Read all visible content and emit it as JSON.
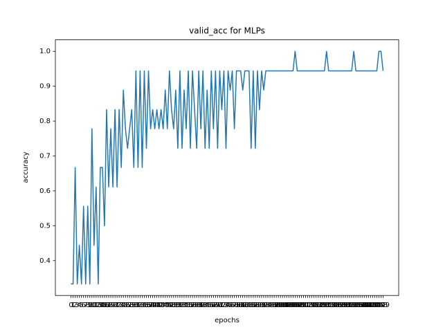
{
  "chart_data": {
    "type": "line",
    "title": "valid_acc for MLPs",
    "x_label": "epochs",
    "y_label": "accuracy",
    "categories": [
      "0",
      "1",
      "2",
      "3",
      "4",
      "5",
      "6",
      "7",
      "8",
      "9",
      "10",
      "11",
      "12",
      "13",
      "14",
      "15",
      "16",
      "17",
      "18",
      "19",
      "20",
      "21",
      "22",
      "23",
      "24",
      "25",
      "26",
      "27",
      "28",
      "29",
      "30",
      "31",
      "32",
      "33",
      "34",
      "35",
      "36",
      "37",
      "38",
      "39",
      "40",
      "41",
      "42",
      "43",
      "44",
      "45",
      "46",
      "47",
      "48",
      "49",
      "50",
      "51",
      "52",
      "53",
      "54",
      "55",
      "56",
      "57",
      "58",
      "59",
      "60",
      "61",
      "62",
      "63",
      "64",
      "65",
      "66",
      "67",
      "68",
      "69",
      "70",
      "71",
      "72",
      "73",
      "74",
      "75",
      "76",
      "77",
      "78",
      "79",
      "80",
      "81",
      "82",
      "83",
      "84",
      "85",
      "86",
      "87",
      "88",
      "89",
      "90",
      "91",
      "92",
      "93",
      "94",
      "95",
      "96",
      "97",
      "98",
      "99",
      "100",
      "101",
      "102",
      "103",
      "104",
      "105",
      "106",
      "107",
      "108",
      "109",
      "110",
      "111",
      "112",
      "113",
      "114",
      "115",
      "116",
      "117",
      "118",
      "119",
      "120",
      "121",
      "122",
      "123",
      "124",
      "125",
      "126",
      "127",
      "128",
      "129",
      "130",
      "131",
      "132",
      "133",
      "134",
      "135",
      "136",
      "137",
      "138",
      "139",
      "140",
      "141",
      "142",
      "143",
      "144",
      "145",
      "146",
      "147",
      "148",
      "149"
    ],
    "series": [
      {
        "name": "valid_acc",
        "color": "#1f77b4",
        "values": [
          0.333,
          0.333,
          0.667,
          0.333,
          0.444,
          0.333,
          0.556,
          0.333,
          0.556,
          0.333,
          0.778,
          0.444,
          0.611,
          0.333,
          0.667,
          0.667,
          0.5,
          0.833,
          0.611,
          0.778,
          0.611,
          0.833,
          0.611,
          0.833,
          0.667,
          0.889,
          0.778,
          0.722,
          0.778,
          0.833,
          0.667,
          0.944,
          0.667,
          0.944,
          0.667,
          0.944,
          0.722,
          0.944,
          0.778,
          0.833,
          0.778,
          0.833,
          0.778,
          0.833,
          0.778,
          0.889,
          0.778,
          0.944,
          0.833,
          0.778,
          0.889,
          0.722,
          0.944,
          0.722,
          0.889,
          0.778,
          0.944,
          0.722,
          0.944,
          0.833,
          0.722,
          0.944,
          0.778,
          0.944,
          0.722,
          0.889,
          0.722,
          0.944,
          0.778,
          0.944,
          0.722,
          0.944,
          0.833,
          0.944,
          0.722,
          0.944,
          0.889,
          0.944,
          0.778,
          0.944,
          0.944,
          0.944,
          0.889,
          0.944,
          0.944,
          0.944,
          0.722,
          0.944,
          0.722,
          0.944,
          0.833,
          0.944,
          0.889,
          0.944,
          0.944,
          0.944,
          0.944,
          0.944,
          0.944,
          0.944,
          0.944,
          0.944,
          0.944,
          0.944,
          0.944,
          0.944,
          0.944,
          1.0,
          0.944,
          0.944,
          0.944,
          0.944,
          0.944,
          0.944,
          0.944,
          0.944,
          0.944,
          0.944,
          0.944,
          0.944,
          0.944,
          0.944,
          1.0,
          0.944,
          0.944,
          0.944,
          0.944,
          0.944,
          0.944,
          0.944,
          0.944,
          0.944,
          0.944,
          0.944,
          0.944,
          1.0,
          0.944,
          0.944,
          0.944,
          0.944,
          0.944,
          0.944,
          0.944,
          0.944,
          0.944,
          0.944,
          0.944,
          1.0,
          1.0,
          0.944
        ]
      }
    ],
    "ylim": [
      0.3,
      1.033
    ],
    "yticks": [
      0.4,
      0.5,
      0.6,
      0.7,
      0.8,
      0.9,
      {
        "value": 1,
        "label": "1.0"
      }
    ],
    "grid": false
  }
}
